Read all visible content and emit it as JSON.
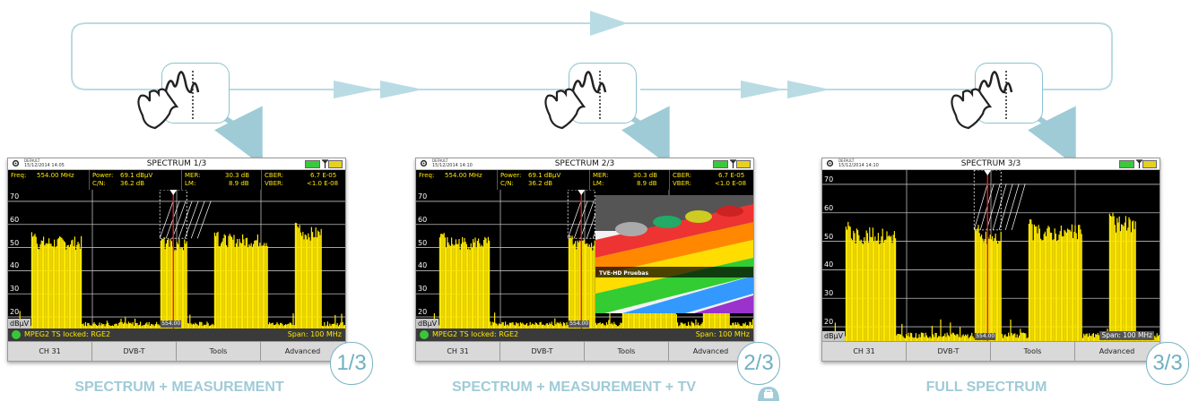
{
  "screens": [
    {
      "title": "SPECTRUM 1/3",
      "profile": "DEFAULT",
      "date": "15/12/2014 14:05",
      "has_meas": true,
      "has_tv": false,
      "meas": {
        "freq_label": "Freq:",
        "freq_value": "554.00 MHz",
        "power_label": "Power:",
        "power_value": "69.1 dBµV",
        "cn_label": "C/N:",
        "cn_value": "36.2 dB",
        "mer_label": "MER:",
        "mer_value": "30.3 dB",
        "lm_label": "LM:",
        "lm_value": "8.9 dB",
        "cber_label": "CBER:",
        "cber_value": "6.7 E-05",
        "vber_label": "VBER:",
        "vber_value": "<1.0 E-08"
      },
      "y_ticks": [
        "70",
        "60",
        "50",
        "40",
        "30",
        "20"
      ],
      "unit": "dBµV",
      "marker_freq": "554.00",
      "status_lock": "MPEG2 TS locked: RGE2",
      "status_span": "Span: 100 MHz",
      "softkeys": [
        "CH 31",
        "DVB-T",
        "Tools",
        "Advanced"
      ],
      "page_badge": "1/3"
    },
    {
      "title": "SPECTRUM 2/3",
      "profile": "DEFAULT",
      "date": "15/12/2014 14:10",
      "has_meas": true,
      "has_tv": true,
      "tv_caption": "TVE-HD Pruebas",
      "meas": {
        "freq_label": "Freq:",
        "freq_value": "554.00 MHz",
        "power_label": "Power:",
        "power_value": "69.1 dBµV",
        "cn_label": "C/N:",
        "cn_value": "36.2 dB",
        "mer_label": "MER:",
        "mer_value": "30.3 dB",
        "lm_label": "LM:",
        "lm_value": "8.9 dB",
        "cber_label": "CBER:",
        "cber_value": "6.7 E-05",
        "vber_label": "VBER:",
        "vber_value": "<1.0 E-08"
      },
      "y_ticks": [
        "70",
        "60",
        "50",
        "40",
        "30",
        "20"
      ],
      "unit": "dBµV",
      "marker_freq": "554.00",
      "status_lock": "MPEG2 TS locked: RGE2",
      "status_span": "Span: 100 MHz",
      "softkeys": [
        "CH 31",
        "DVB-T",
        "Tools",
        "Advanced"
      ],
      "page_badge": "2/3"
    },
    {
      "title": "SPECTRUM 3/3",
      "profile": "DEFAULT",
      "date": "15/12/2014 14:10",
      "has_meas": false,
      "has_tv": false,
      "y_ticks": [
        "70",
        "60",
        "50",
        "40",
        "30",
        "20"
      ],
      "unit": "dBµV",
      "marker_freq": "554.00",
      "status_span": "Span: 100 MHz",
      "softkeys": [
        "CH 31",
        "DVB-T",
        "Tools",
        "Advanced"
      ],
      "page_badge": "3/3"
    }
  ],
  "mode_labels": [
    "SPECTRUM + MEASUREMENT",
    "SPECTRUM + MEASUREMENT + TV",
    "FULL SPECTRUM"
  ],
  "icons": {
    "gesture": "tap-spectrum-icon",
    "flow": "cycle-arrow-icon",
    "tv": "tv-icon",
    "settings": "gear-icon",
    "battery": "battery-icon",
    "antenna": "antenna-icon",
    "lock": "check-circle-icon"
  },
  "colors": {
    "accent": "#8cc3d1",
    "label": "#9fcbd7",
    "trace": "#ffe800",
    "marker": "#e02020"
  },
  "spectrum": {
    "db_min": 15,
    "db_max": 75,
    "channels": [
      {
        "start": 0.07,
        "end": 0.22,
        "level": 53
      },
      {
        "start": 0.45,
        "end": 0.53,
        "level": 52
      },
      {
        "start": 0.61,
        "end": 0.77,
        "level": 54
      },
      {
        "start": 0.85,
        "end": 0.93,
        "level": 57
      }
    ],
    "marker_pos": 0.49
  }
}
